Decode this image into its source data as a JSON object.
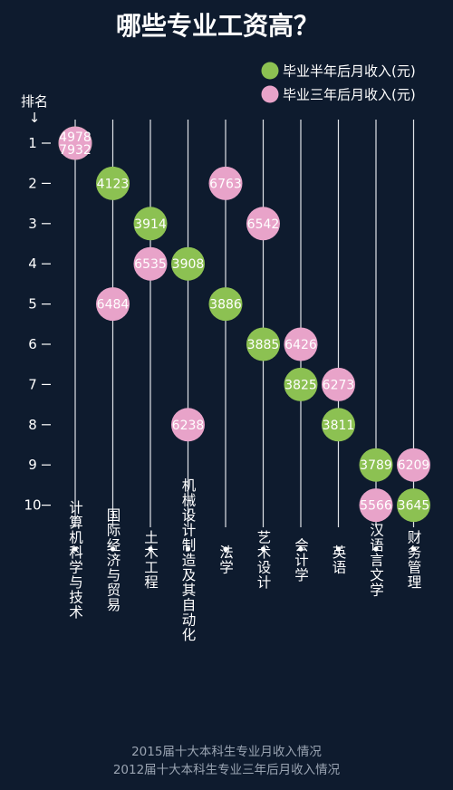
{
  "chart_data": {
    "type": "scatter",
    "title": "哪些专业工资高？",
    "rank_axis_label": "排名",
    "ranks": [
      "1",
      "2",
      "3",
      "4",
      "5",
      "6",
      "7",
      "8",
      "9",
      "10"
    ],
    "categories": [
      "计算机科学与技术",
      "国际经济与贸易",
      "土木工程",
      "机械设计制造及其自动化",
      "法学",
      "艺术设计",
      "会计学",
      "英语",
      "汉语言文学",
      "财务管理"
    ],
    "series": [
      {
        "name": "毕业半年后月收入(元)",
        "color": "#8cc152",
        "points": [
          {
            "category": "计算机科学与技术",
            "rank": 1,
            "value": "4978"
          },
          {
            "category": "国际经济与贸易",
            "rank": 2,
            "value": "4123"
          },
          {
            "category": "土木工程",
            "rank": 3,
            "value": "3914"
          },
          {
            "category": "机械设计制造及其自动化",
            "rank": 4,
            "value": "3908"
          },
          {
            "category": "法学",
            "rank": 5,
            "value": "3886"
          },
          {
            "category": "艺术设计",
            "rank": 6,
            "value": "3885"
          },
          {
            "category": "会计学",
            "rank": 7,
            "value": "3825"
          },
          {
            "category": "英语",
            "rank": 8,
            "value": "3811"
          },
          {
            "category": "汉语言文学",
            "rank": 9,
            "value": "3789"
          },
          {
            "category": "财务管理",
            "rank": 10,
            "value": "3645"
          }
        ]
      },
      {
        "name": "毕业三年后月收入(元)",
        "color": "#e8a3c9",
        "points": [
          {
            "category": "计算机科学与技术",
            "rank": 1,
            "value": "7932"
          },
          {
            "category": "法学",
            "rank": 2,
            "value": "6763"
          },
          {
            "category": "艺术设计",
            "rank": 3,
            "value": "6542"
          },
          {
            "category": "土木工程",
            "rank": 4,
            "value": "6535"
          },
          {
            "category": "国际经济与贸易",
            "rank": 5,
            "value": "6484"
          },
          {
            "category": "会计学",
            "rank": 6,
            "value": "6426"
          },
          {
            "category": "英语",
            "rank": 7,
            "value": "6273"
          },
          {
            "category": "机械设计制造及其自动化",
            "rank": 8,
            "value": "6238"
          },
          {
            "category": "财务管理",
            "rank": 9,
            "value": "6209"
          },
          {
            "category": "汉语言文学",
            "rank": 10,
            "value": "5566"
          }
        ]
      }
    ],
    "legend_position": "top-right",
    "grid": false,
    "notes": [
      "2015届十大本科生专业月收入情况",
      "2012届十大本科生专业三年后月收入情况"
    ]
  }
}
